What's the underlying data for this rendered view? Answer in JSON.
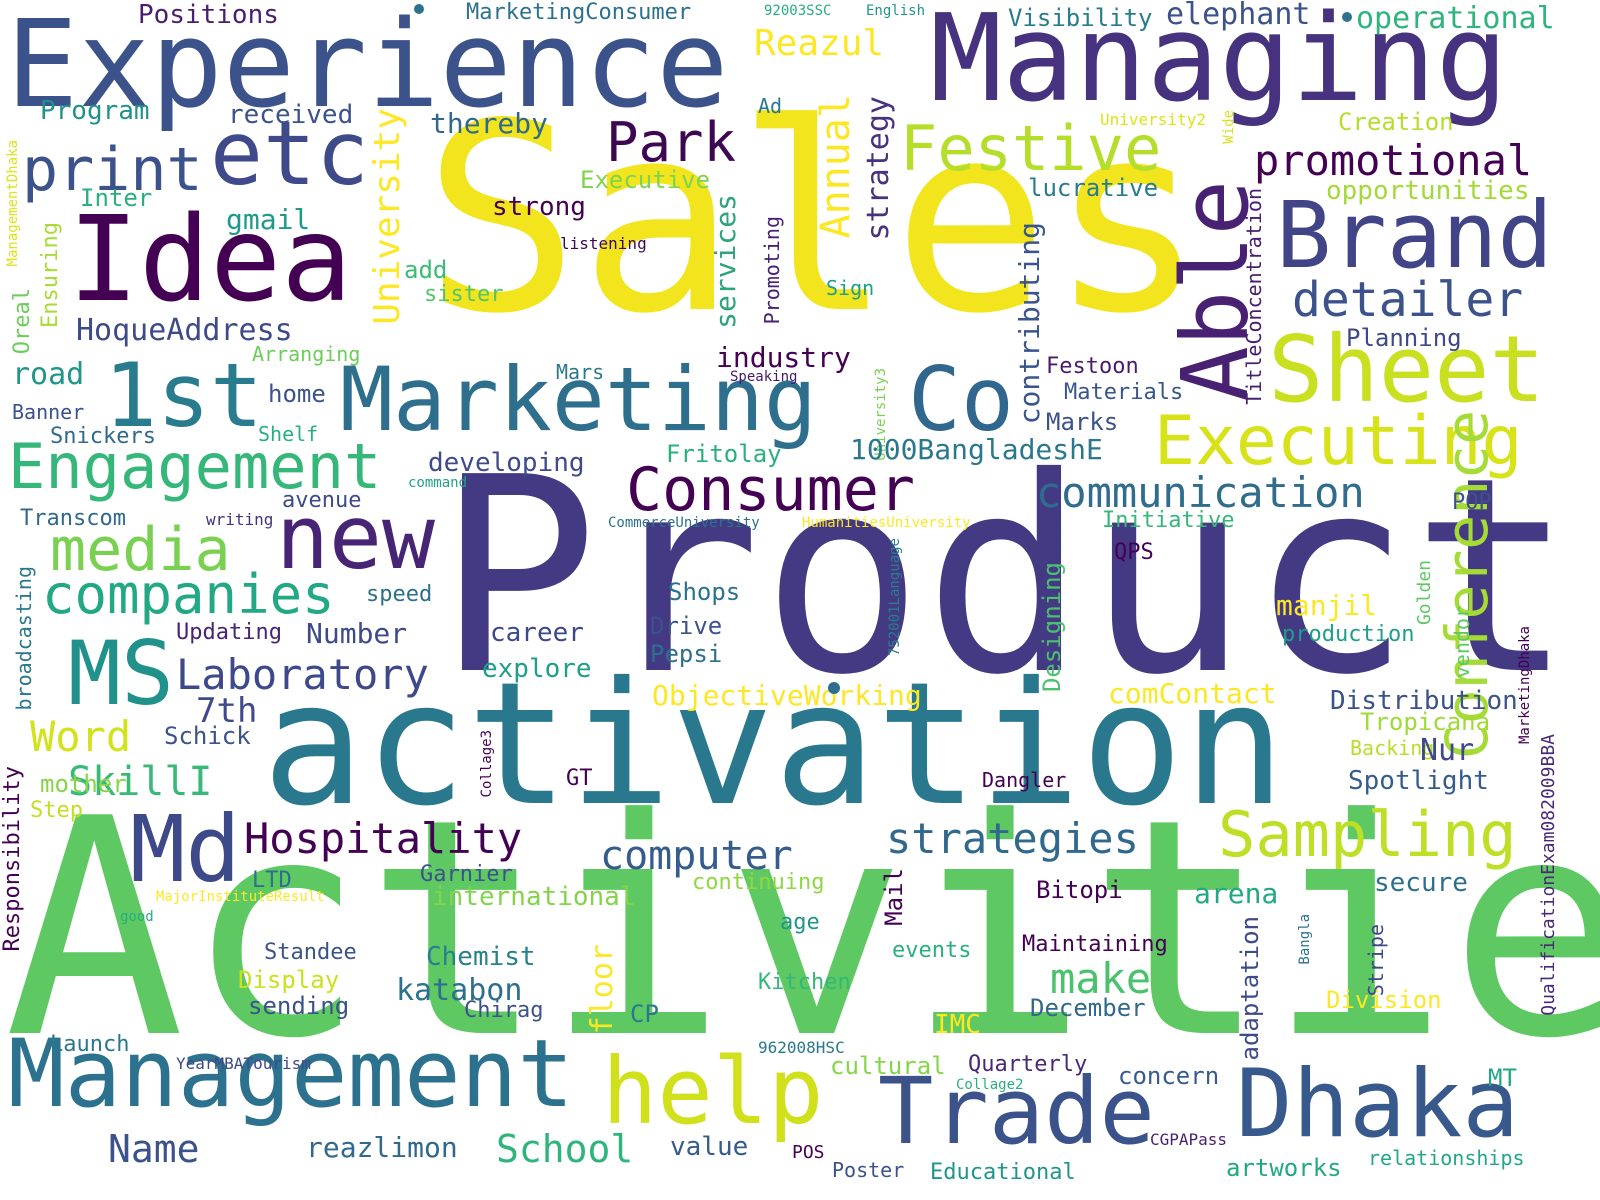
{
  "words": [
    {
      "text": "Activities",
      "color": "#5ec962"
    },
    {
      "text": "Product",
      "color": "#443983"
    },
    {
      "text": "Sales",
      "color": "#f2e51d"
    },
    {
      "text": "activation",
      "color": "#2a788e"
    },
    {
      "text": "Managing",
      "color": "#46327e"
    },
    {
      "text": "Experience",
      "color": "#3b528b"
    },
    {
      "text": "Idea",
      "color": "#440154"
    },
    {
      "text": "etc",
      "color": "#3e4a89"
    },
    {
      "text": "Management",
      "color": "#2c728e"
    },
    {
      "text": "Brand",
      "color": "#414487"
    },
    {
      "text": "Able",
      "color": "#482173"
    },
    {
      "text": "Sheet",
      "color": "#c8e020"
    },
    {
      "text": "Marketing",
      "color": "#2e6f8e"
    },
    {
      "text": "Co",
      "color": "#31678e"
    },
    {
      "text": "Dhaka",
      "color": "#38598c"
    },
    {
      "text": "Trade",
      "color": "#3b528b"
    },
    {
      "text": "help",
      "color": "#d0e11c"
    },
    {
      "text": "Md",
      "color": "#3e4989"
    },
    {
      "text": "MS",
      "color": "#21918c"
    },
    {
      "text": "new",
      "color": "#482475"
    },
    {
      "text": "1st",
      "color": "#287c8e"
    },
    {
      "text": "print",
      "color": "#3b528b"
    },
    {
      "text": "Executing",
      "color": "#d8e219"
    },
    {
      "text": "Engagement",
      "color": "#35b779"
    },
    {
      "text": "Consumer",
      "color": "#440154"
    },
    {
      "text": "Festive",
      "color": "#b5de2b"
    },
    {
      "text": "Sampling",
      "color": "#bddf26"
    },
    {
      "text": "Conference",
      "color": "#a5db36"
    },
    {
      "text": "media",
      "color": "#7ad151"
    },
    {
      "text": "companies",
      "color": "#22a884"
    },
    {
      "text": "Park",
      "color": "#3e0751"
    },
    {
      "text": "detailer",
      "color": "#3b528b"
    },
    {
      "text": "promotional",
      "color": "#440154"
    },
    {
      "text": "communication",
      "color": "#2f6c8e"
    },
    {
      "text": "Laboratory",
      "color": "#3e4989"
    },
    {
      "text": "Hospitality",
      "color": "#440154"
    },
    {
      "text": "strategies",
      "color": "#31688e"
    },
    {
      "text": "computer",
      "color": "#365c8d"
    },
    {
      "text": "make",
      "color": "#4ac16d"
    },
    {
      "text": "Name",
      "color": "#3b528b"
    },
    {
      "text": "School",
      "color": "#2fb47c"
    },
    {
      "text": "reazlimon",
      "color": "#31688e"
    },
    {
      "text": "Word",
      "color": "#d2e21b"
    },
    {
      "text": "SkillI",
      "color": "#38b977"
    },
    {
      "text": "7th",
      "color": "#3e4a89"
    },
    {
      "text": "University",
      "color": "#fde725"
    },
    {
      "text": "Annual",
      "color": "#fde725"
    },
    {
      "text": "Reazul",
      "color": "#fde725"
    },
    {
      "text": "strategy",
      "color": "#46327e"
    },
    {
      "text": "services",
      "color": "#2ea37d"
    },
    {
      "text": "contributing",
      "color": "#39558c"
    },
    {
      "text": "HoqueAddress",
      "color": "#3e4a89"
    },
    {
      "text": "katabon",
      "color": "#2d708e"
    },
    {
      "text": "Chemist",
      "color": "#27808e"
    },
    {
      "text": "Positions",
      "color": "#481f70"
    },
    {
      "text": "MarketingConsumer",
      "color": "#2c728e"
    },
    {
      "text": "92003SSC",
      "color": "#27ad81"
    },
    {
      "text": "English",
      "color": "#1f958b"
    },
    {
      "text": "Visibility",
      "color": "#287c8e"
    },
    {
      "text": "elephant",
      "color": "#3b528b"
    },
    {
      "text": "operational",
      "color": "#2fb47c"
    },
    {
      "text": "Program",
      "color": "#21918c"
    },
    {
      "text": "received",
      "color": "#3b528b"
    },
    {
      "text": "thereby",
      "color": "#31688e"
    },
    {
      "text": "Ad",
      "color": "#29798e"
    },
    {
      "text": "University2",
      "color": "#dde318"
    },
    {
      "text": "Creation",
      "color": "#b5de2b"
    },
    {
      "text": "Wide",
      "color": "#d8e219"
    },
    {
      "text": "ManagementDhaka",
      "color": "#dde318"
    },
    {
      "text": "Executive",
      "color": "#7fd34e"
    },
    {
      "text": "lucrative",
      "color": "#287c8e"
    },
    {
      "text": "opportunities",
      "color": "#a2da37"
    },
    {
      "text": "Inter",
      "color": "#2ab07f"
    },
    {
      "text": "gmail",
      "color": "#1f9a8a"
    },
    {
      "text": "strong",
      "color": "#440154"
    },
    {
      "text": "listening",
      "color": "#3e0751"
    },
    {
      "text": "Promoting",
      "color": "#482173"
    },
    {
      "text": "TitleConcentration",
      "color": "#481f70"
    },
    {
      "text": "Ensuring",
      "color": "#a8db34"
    },
    {
      "text": "Oreal",
      "color": "#6ccd5a"
    },
    {
      "text": "add",
      "color": "#3bbb75"
    },
    {
      "text": "sister",
      "color": "#52c569"
    },
    {
      "text": "Sign",
      "color": "#1f9e89"
    },
    {
      "text": "Planning",
      "color": "#3e4989"
    },
    {
      "text": "industry",
      "color": "#440154"
    },
    {
      "text": "Festoon",
      "color": "#481c6e"
    },
    {
      "text": "Arranging",
      "color": "#6ccd5a"
    },
    {
      "text": "road",
      "color": "#1f958b"
    },
    {
      "text": "home",
      "color": "#3b528b"
    },
    {
      "text": "Mars",
      "color": "#2a788e"
    },
    {
      "text": "Speaking",
      "color": "#48186a"
    },
    {
      "text": "University3",
      "color": "#7ad151"
    },
    {
      "text": "Materials",
      "color": "#39568c"
    },
    {
      "text": "Marks",
      "color": "#3b528b"
    },
    {
      "text": "Banner",
      "color": "#3b528b"
    },
    {
      "text": "Snickers",
      "color": "#31688e"
    },
    {
      "text": "Shelf",
      "color": "#29af7f"
    },
    {
      "text": "developing",
      "color": "#3e4a89"
    },
    {
      "text": "Fritolay",
      "color": "#2ab07f"
    },
    {
      "text": "1000BangladeshE",
      "color": "#2a788e"
    },
    {
      "text": "avenue",
      "color": "#3e4989"
    },
    {
      "text": "command",
      "color": "#20a386"
    },
    {
      "text": "Transcom",
      "color": "#31688e"
    },
    {
      "text": "writing",
      "color": "#46327e"
    },
    {
      "text": "CommerceUniversity",
      "color": "#2c728e"
    },
    {
      "text": "HumanitiesUniversity",
      "color": "#fde725"
    },
    {
      "text": "Initiative",
      "color": "#35b779"
    },
    {
      "text": "POP",
      "color": "#3b528b"
    },
    {
      "text": "QPS",
      "color": "#440154"
    },
    {
      "text": "752001Language",
      "color": "#277f8e"
    },
    {
      "text": "Designing",
      "color": "#4ac16d"
    },
    {
      "text": "Shops",
      "color": "#2c728e"
    },
    {
      "text": "speed",
      "color": "#2d708e"
    },
    {
      "text": "Number",
      "color": "#3e4a89"
    },
    {
      "text": "Updating",
      "color": "#482475"
    },
    {
      "text": "broadcasting",
      "color": "#2a788e"
    },
    {
      "text": "career",
      "color": "#3e4989"
    },
    {
      "text": "manjil",
      "color": "#fde725"
    },
    {
      "text": "Golden",
      "color": "#5ec962"
    },
    {
      "text": "vendor",
      "color": "#5ec962"
    },
    {
      "text": "production",
      "color": "#1f9e89"
    },
    {
      "text": "MarketingDhaka",
      "color": "#440154"
    },
    {
      "text": "Drive",
      "color": "#3b528b"
    },
    {
      "text": "explore",
      "color": "#1f9e89"
    },
    {
      "text": "Pepsi",
      "color": "#2d708e"
    },
    {
      "text": "ObjectiveWorking",
      "color": "#fde725"
    },
    {
      "text": "comContact",
      "color": "#fde725"
    },
    {
      "text": "Distribution",
      "color": "#3b528b"
    },
    {
      "text": "Tropicana",
      "color": "#a0da39"
    },
    {
      "text": "QualificationExam082009BBA",
      "color": "#482878"
    },
    {
      "text": "Backing",
      "color": "#b8de29"
    },
    {
      "text": "Nur",
      "color": "#3e4989"
    },
    {
      "text": "Schick",
      "color": "#3b528b"
    },
    {
      "text": "Responsibility",
      "color": "#440154"
    },
    {
      "text": "mother",
      "color": "#86d549"
    },
    {
      "text": "Collage3",
      "color": "#440154"
    },
    {
      "text": "GT",
      "color": "#440154"
    },
    {
      "text": "Dangler",
      "color": "#440154"
    },
    {
      "text": "Spotlight",
      "color": "#365c8d"
    },
    {
      "text": "Step",
      "color": "#c2df23"
    },
    {
      "text": "LTD",
      "color": "#2e6f8e"
    },
    {
      "text": "Garnier",
      "color": "#3b528b"
    },
    {
      "text": "continuing",
      "color": "#90d743"
    },
    {
      "text": "Mail",
      "color": "#440154"
    },
    {
      "text": "Bitopi",
      "color": "#440154"
    },
    {
      "text": "secure",
      "color": "#2d708e"
    },
    {
      "text": "arena",
      "color": "#22a884"
    },
    {
      "text": "MajorInstituteResult",
      "color": "#fde725"
    },
    {
      "text": "international",
      "color": "#84d44b"
    },
    {
      "text": "good",
      "color": "#27ad81"
    },
    {
      "text": "age",
      "color": "#1f958b"
    },
    {
      "text": "adaptation",
      "color": "#3e4a89"
    },
    {
      "text": "Bangla",
      "color": "#2c728e"
    },
    {
      "text": "Stripe",
      "color": "#3e4989"
    },
    {
      "text": "Standee",
      "color": "#3b528b"
    },
    {
      "text": "Display",
      "color": "#cae11f"
    },
    {
      "text": "floor",
      "color": "#fde725"
    },
    {
      "text": "events",
      "color": "#2ab07f"
    },
    {
      "text": "Maintaining",
      "color": "#440154"
    },
    {
      "text": "sending",
      "color": "#3b528b"
    },
    {
      "text": "Kitchen",
      "color": "#35b779"
    },
    {
      "text": "Division",
      "color": "#fde725"
    },
    {
      "text": "CP",
      "color": "#2a788e"
    },
    {
      "text": "Chirag",
      "color": "#3b528b"
    },
    {
      "text": "IMC",
      "color": "#fde725"
    },
    {
      "text": "December",
      "color": "#31688e"
    },
    {
      "text": "962008HSC",
      "color": "#2a788e"
    },
    {
      "text": "Launch",
      "color": "#2a788e"
    },
    {
      "text": "YearMBATourism",
      "color": "#3e4989"
    },
    {
      "text": "cultural",
      "color": "#86d549"
    },
    {
      "text": "Quarterly",
      "color": "#482878"
    },
    {
      "text": "Collage2",
      "color": "#29af7f"
    },
    {
      "text": "concern",
      "color": "#365c8d"
    },
    {
      "text": "MT",
      "color": "#22a884"
    },
    {
      "text": "value",
      "color": "#365c8d"
    },
    {
      "text": "POS",
      "color": "#440154"
    },
    {
      "text": "CGPAPass",
      "color": "#481f70"
    },
    {
      "text": "Poster",
      "color": "#3b528b"
    },
    {
      "text": "Educational",
      "color": "#1f958b"
    },
    {
      "text": "artworks",
      "color": "#22a884"
    },
    {
      "text": "relationships",
      "color": "#22a884"
    }
  ]
}
